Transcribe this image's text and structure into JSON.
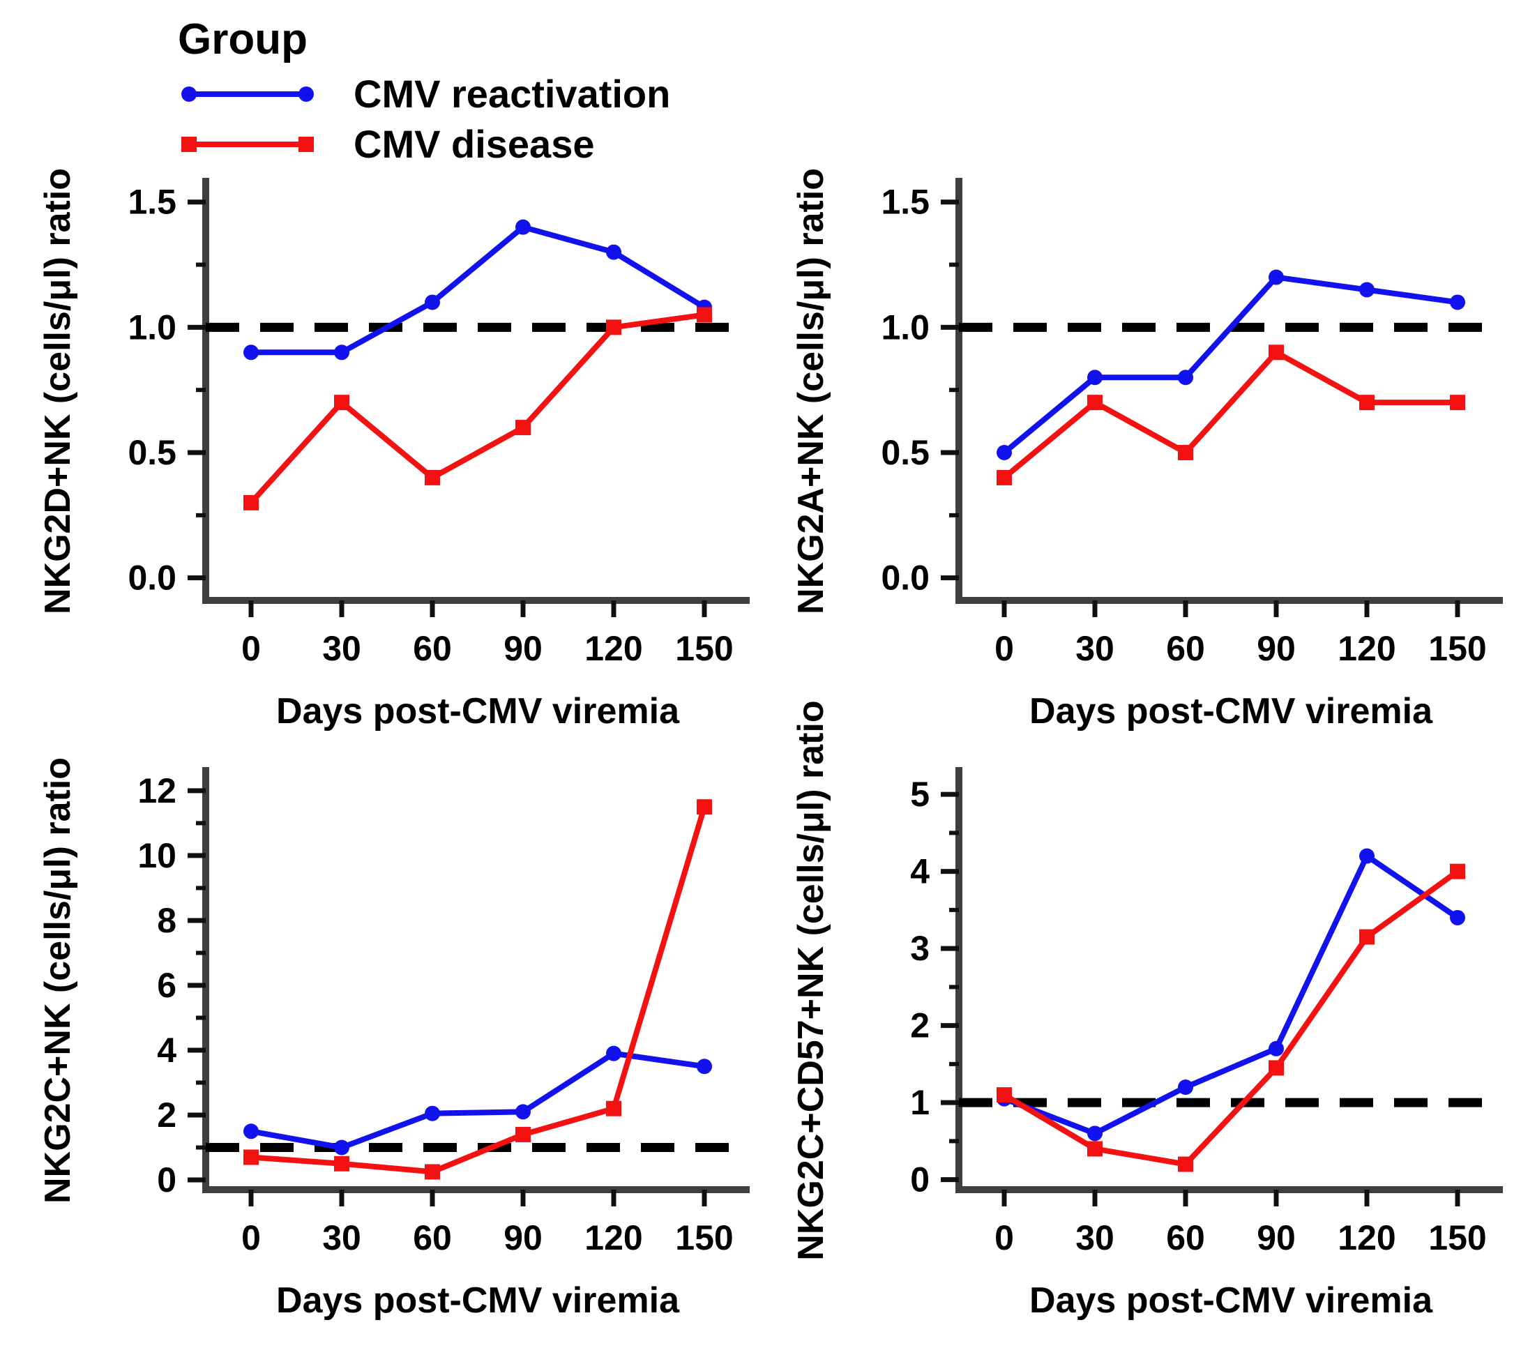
{
  "figure": {
    "legend": {
      "title": "Group",
      "items": [
        {
          "label": "CMV reactivation",
          "key": "reactivation",
          "marker": "circle"
        },
        {
          "label": "CMV disease",
          "key": "disease",
          "marker": "square"
        }
      ]
    },
    "colors": {
      "reactivation": "#1212ee",
      "disease": "#f41111",
      "axis": "#3f3f3f",
      "tick": "#101010",
      "text": "#000000",
      "ref_line": "#000000",
      "background": "#ffffff"
    }
  },
  "chart_data": [
    {
      "type": "line",
      "title": "",
      "ylabel": "NKG2D+NK (cells/μl) ratio",
      "xlabel": "Days post-CMV viremia",
      "x": [
        0,
        30,
        60,
        90,
        120,
        150
      ],
      "xlim": [
        -15,
        165
      ],
      "ylim": [
        -0.09,
        1.58
      ],
      "yticks": [
        0,
        0.5,
        1,
        1.5
      ],
      "ytick_labels": [
        "0.0",
        "0.5",
        "1.0",
        "1.5"
      ],
      "yminor_step": 0.25,
      "ref_y": 1.0,
      "grid": false,
      "series": [
        {
          "name": "CMV reactivation",
          "key": "reactivation",
          "marker": "circle",
          "values": [
            0.9,
            0.9,
            1.1,
            1.4,
            1.3,
            1.08
          ]
        },
        {
          "name": "CMV disease",
          "key": "disease",
          "marker": "square",
          "values": [
            0.3,
            0.7,
            0.4,
            0.6,
            1.0,
            1.05
          ]
        }
      ]
    },
    {
      "type": "line",
      "title": "",
      "ylabel": "NKG2A+NK (cells/μl) ratio",
      "xlabel": "Days post-CMV viremia",
      "x": [
        0,
        30,
        60,
        90,
        120,
        150
      ],
      "xlim": [
        -15,
        165
      ],
      "ylim": [
        -0.09,
        1.58
      ],
      "yticks": [
        0,
        0.5,
        1,
        1.5
      ],
      "ytick_labels": [
        "0.0",
        "0.5",
        "1.0",
        "1.5"
      ],
      "yminor_step": 0.25,
      "ref_y": 1.0,
      "grid": false,
      "series": [
        {
          "name": "CMV reactivation",
          "key": "reactivation",
          "marker": "circle",
          "values": [
            0.5,
            0.8,
            0.8,
            1.2,
            1.15,
            1.1
          ]
        },
        {
          "name": "CMV disease",
          "key": "disease",
          "marker": "square",
          "values": [
            0.4,
            0.7,
            0.5,
            0.9,
            0.7,
            0.7
          ]
        }
      ]
    },
    {
      "type": "line",
      "title": "",
      "ylabel": "NKG2C+NK (cells/μl) ratio",
      "xlabel": "Days post-CMV viremia",
      "x": [
        0,
        30,
        60,
        90,
        120,
        150
      ],
      "xlim": [
        -15,
        165
      ],
      "ylim": [
        -0.3,
        12.6
      ],
      "yticks": [
        0,
        2,
        4,
        6,
        8,
        10,
        12
      ],
      "ytick_labels": [
        "0",
        "2",
        "4",
        "6",
        "8",
        "10",
        "12"
      ],
      "yminor_step": 1,
      "ref_y": 1.0,
      "grid": false,
      "series": [
        {
          "name": "CMV reactivation",
          "key": "reactivation",
          "marker": "circle",
          "values": [
            1.5,
            1.0,
            2.05,
            2.1,
            3.9,
            3.5
          ]
        },
        {
          "name": "CMV disease",
          "key": "disease",
          "marker": "square",
          "values": [
            0.7,
            0.5,
            0.25,
            1.4,
            2.2,
            11.5
          ]
        }
      ]
    },
    {
      "type": "line",
      "title": "",
      "ylabel": "NKG2C+CD57+NK (cells/μl) ratio",
      "xlabel": "Days post-CMV viremia",
      "x": [
        0,
        30,
        60,
        90,
        120,
        150
      ],
      "xlim": [
        -15,
        165
      ],
      "ylim": [
        -0.13,
        5.3
      ],
      "yticks": [
        0,
        1,
        2,
        3,
        4,
        5
      ],
      "ytick_labels": [
        "0",
        "1",
        "2",
        "3",
        "4",
        "5"
      ],
      "yminor_step": 0.5,
      "ref_y": 1.0,
      "grid": false,
      "series": [
        {
          "name": "CMV reactivation",
          "key": "reactivation",
          "marker": "circle",
          "values": [
            1.05,
            0.6,
            1.2,
            1.7,
            4.2,
            3.4
          ]
        },
        {
          "name": "CMV disease",
          "key": "disease",
          "marker": "square",
          "values": [
            1.1,
            0.4,
            0.2,
            1.45,
            3.15,
            4.0
          ]
        }
      ]
    }
  ]
}
